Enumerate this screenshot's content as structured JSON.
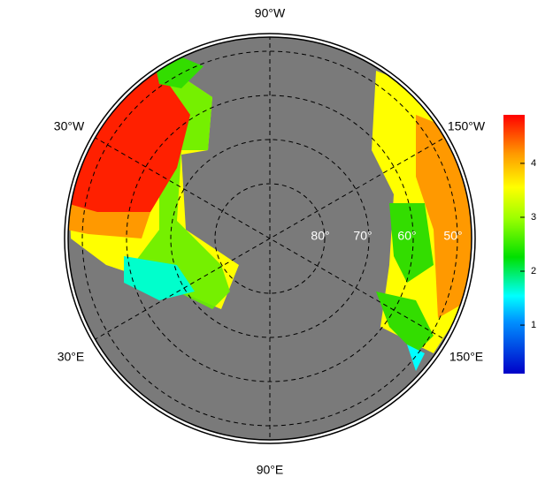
{
  "map": {
    "lon_labels": [
      "90°W",
      "30°W",
      "150°W",
      "30°E",
      "150°E",
      "90°E"
    ],
    "lat_labels": [
      "80°",
      "70°",
      "60°",
      "50°"
    ],
    "colorbar": {
      "range": [
        0.1,
        4.9
      ],
      "ticks": [
        1,
        2,
        3,
        4
      ]
    }
  }
}
